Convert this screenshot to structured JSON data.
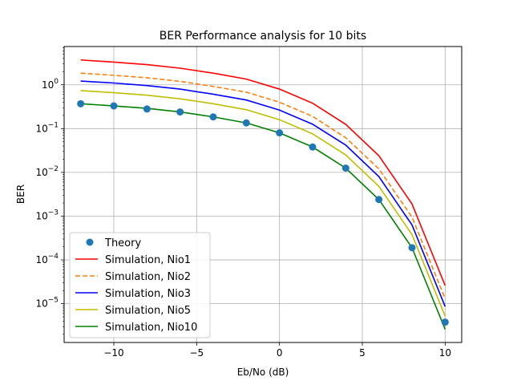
{
  "chart_data": {
    "type": "line",
    "title": "BER Performance analysis for 10 bits",
    "xlabel": "Eb/No (dB)",
    "ylabel": "BER",
    "xlim": [
      -13,
      11
    ],
    "ylim": [
      1.3e-06,
      7.5
    ],
    "yscale": "log",
    "grid": true,
    "legend_position": "lower-left",
    "x": [
      -12,
      -10,
      -8,
      -6,
      -4,
      -2,
      0,
      2,
      4,
      6,
      8,
      10
    ],
    "x_ticks": [
      -10,
      -5,
      0,
      5,
      10
    ],
    "x_tick_labels": [
      "−10",
      "−5",
      "0",
      "5",
      "10"
    ],
    "y_ticks": [
      1e-05,
      0.0001,
      0.001,
      0.01,
      0.1,
      1
    ],
    "y_tick_exponents": [
      "−5",
      "−4",
      "−3",
      "−2",
      "−1",
      "0"
    ],
    "y_tick_base": "10",
    "series": [
      {
        "name": "Theory",
        "style": "markers",
        "color": "#1f77b4",
        "values": [
          0.37,
          0.33,
          0.28,
          0.24,
          0.185,
          0.135,
          0.08,
          0.038,
          0.0125,
          0.0024,
          0.00019,
          3.8e-06
        ]
      },
      {
        "name": "Simulation, Nio1",
        "style": "solid",
        "color": "#ff0000",
        "values": [
          3.7,
          3.3,
          2.9,
          2.4,
          1.85,
          1.35,
          0.8,
          0.38,
          0.125,
          0.024,
          0.0019,
          2.6e-05
        ]
      },
      {
        "name": "Simulation, Nio2",
        "style": "dashed",
        "color": "#ff7f0e",
        "values": [
          1.85,
          1.65,
          1.45,
          1.2,
          0.92,
          0.68,
          0.4,
          0.19,
          0.062,
          0.012,
          0.00095,
          1.3e-05
        ]
      },
      {
        "name": "Simulation, Nio3",
        "style": "solid",
        "color": "#0000ff",
        "values": [
          1.22,
          1.1,
          0.96,
          0.8,
          0.61,
          0.45,
          0.265,
          0.126,
          0.042,
          0.008,
          0.00063,
          8.6e-06
        ]
      },
      {
        "name": "Simulation, Nio5",
        "style": "solid",
        "color": "#bfbf00",
        "values": [
          0.74,
          0.66,
          0.58,
          0.48,
          0.37,
          0.27,
          0.16,
          0.076,
          0.025,
          0.0048,
          0.00038,
          5.2e-06
        ]
      },
      {
        "name": "Simulation, Nio10",
        "style": "solid",
        "color": "#008000",
        "values": [
          0.37,
          0.33,
          0.29,
          0.24,
          0.185,
          0.135,
          0.08,
          0.038,
          0.0125,
          0.0024,
          0.00019,
          2.6e-06
        ]
      }
    ]
  }
}
